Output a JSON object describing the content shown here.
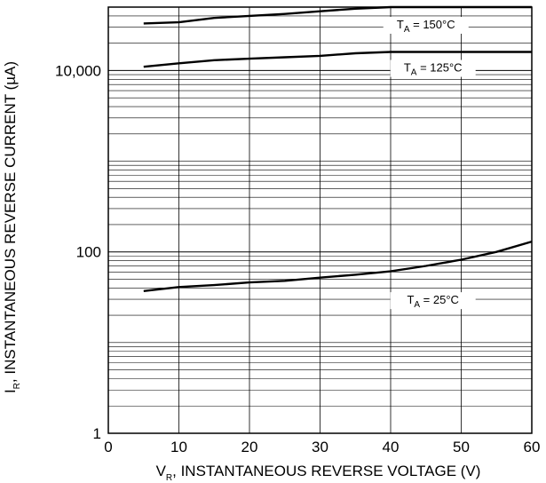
{
  "chart_data": {
    "type": "line",
    "scale": {
      "y": "log",
      "x": "linear"
    },
    "xlim": [
      0,
      60
    ],
    "ylim": [
      1,
      50000
    ],
    "x_ticks": [
      "0",
      "10",
      "20",
      "30",
      "40",
      "50",
      "60"
    ],
    "y_ticks": [
      "1",
      "100",
      "10,000"
    ],
    "xlabel": {
      "main": "V",
      "sub": "R",
      "rest": ", INSTANTANEOUS REVERSE VOLTAGE (V)"
    },
    "ylabel": {
      "main": "I",
      "sub": "R",
      "rest": ", INSTANTANEOUS REVERSE  CURRENT (µA)"
    },
    "grid": true,
    "series": [
      {
        "name_main": "T",
        "name_sub": "A",
        "name_rest": " = 150°C",
        "points": [
          [
            5,
            33000
          ],
          [
            10,
            34000
          ],
          [
            15,
            38000
          ],
          [
            20,
            40000
          ],
          [
            25,
            42000
          ],
          [
            30,
            45000
          ],
          [
            35,
            48000
          ],
          [
            40,
            50000
          ],
          [
            50,
            50000
          ],
          [
            60,
            50000
          ]
        ]
      },
      {
        "name_main": "T",
        "name_sub": "A",
        "name_rest": " = 125°C",
        "points": [
          [
            5,
            11000
          ],
          [
            10,
            12000
          ],
          [
            15,
            13000
          ],
          [
            20,
            13500
          ],
          [
            25,
            14000
          ],
          [
            30,
            14500
          ],
          [
            35,
            15500
          ],
          [
            40,
            16000
          ],
          [
            50,
            16000
          ],
          [
            60,
            16000
          ]
        ]
      },
      {
        "name_main": "T",
        "name_sub": "A",
        "name_rest": " = 25°C",
        "points": [
          [
            5,
            37
          ],
          [
            10,
            41
          ],
          [
            15,
            43
          ],
          [
            20,
            46
          ],
          [
            25,
            48
          ],
          [
            30,
            52
          ],
          [
            35,
            56
          ],
          [
            40,
            61
          ],
          [
            45,
            70
          ],
          [
            50,
            82
          ],
          [
            55,
            100
          ],
          [
            60,
            130
          ]
        ]
      }
    ]
  }
}
